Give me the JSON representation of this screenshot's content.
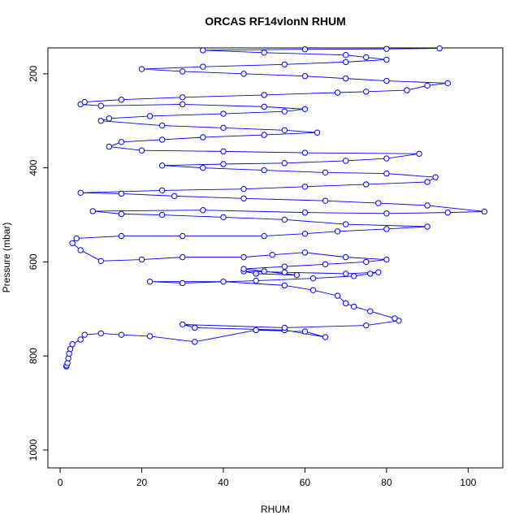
{
  "chart_data": {
    "type": "line",
    "title": "ORCAS RF14vlonN RHUM",
    "x_label": "RHUM",
    "y_label": "Pressure (mbar)",
    "color": "#0000ff",
    "markers": "open-circle",
    "y_reversed": true,
    "xlim": [
      -3,
      108.5
    ],
    "ylim": [
      145,
      1038
    ],
    "xticks": [
      0,
      20,
      40,
      60,
      80,
      100
    ],
    "yticks": [
      200,
      400,
      600,
      800,
      1000
    ],
    "x": [
      1.5,
      1.6,
      1.8,
      2,
      2.2,
      2.5,
      3,
      5,
      6,
      10,
      15,
      22,
      33,
      48,
      60,
      65,
      55,
      33,
      30,
      55,
      75,
      83,
      82,
      76,
      72,
      70,
      68,
      62,
      55,
      40,
      22,
      30,
      48,
      62,
      72,
      76,
      78,
      70,
      55,
      45,
      48,
      58,
      50,
      45,
      55,
      65,
      75,
      80,
      70,
      60,
      52,
      45,
      30,
      20,
      10,
      5,
      3,
      4,
      15,
      30,
      50,
      60,
      68,
      80,
      90,
      70,
      55,
      40,
      25,
      15,
      8,
      35,
      60,
      80,
      95,
      104,
      90,
      78,
      65,
      45,
      28,
      15,
      5,
      25,
      45,
      60,
      75,
      90,
      92,
      80,
      65,
      50,
      35,
      25,
      40,
      55,
      70,
      80,
      88,
      60,
      40,
      20,
      12,
      15,
      25,
      35,
      50,
      63,
      55,
      40,
      25,
      10,
      12,
      22,
      40,
      55,
      60,
      50,
      30,
      10,
      5,
      6,
      15,
      30,
      50,
      68,
      75,
      85,
      90,
      95,
      80,
      70,
      60,
      45,
      30,
      20,
      35,
      55,
      70,
      80,
      75,
      70,
      50,
      35,
      60,
      80,
      93
    ],
    "values": [
      822,
      820,
      815,
      805,
      795,
      785,
      775,
      765,
      755,
      752,
      755,
      758,
      770,
      745,
      748,
      760,
      745,
      740,
      733,
      740,
      735,
      725,
      720,
      705,
      695,
      688,
      672,
      660,
      650,
      642,
      642,
      645,
      640,
      635,
      630,
      625,
      622,
      625,
      622,
      620,
      625,
      628,
      620,
      615,
      610,
      605,
      600,
      595,
      590,
      580,
      585,
      590,
      590,
      595,
      598,
      575,
      560,
      550,
      545,
      545,
      545,
      540,
      535,
      530,
      525,
      520,
      510,
      505,
      500,
      498,
      492,
      490,
      495,
      497,
      495,
      493,
      480,
      475,
      470,
      465,
      460,
      455,
      453,
      448,
      445,
      440,
      435,
      430,
      420,
      412,
      410,
      405,
      400,
      395,
      392,
      390,
      385,
      380,
      370,
      368,
      365,
      363,
      355,
      345,
      340,
      335,
      330,
      325,
      320,
      315,
      310,
      300,
      295,
      290,
      285,
      280,
      275,
      270,
      265,
      268,
      265,
      260,
      255,
      250,
      245,
      240,
      238,
      235,
      225,
      220,
      215,
      210,
      205,
      200,
      195,
      190,
      185,
      180,
      175,
      170,
      165,
      160,
      155,
      150,
      148,
      147,
      146
    ]
  }
}
